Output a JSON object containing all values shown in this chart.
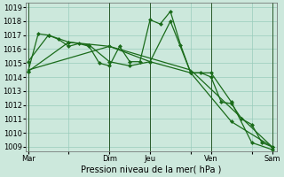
{
  "background_color": "#cce8dc",
  "grid_color": "#99ccbb",
  "line_color": "#1a6b1a",
  "xlabel": "Pression niveau de la mer( hPa )",
  "ylim": [
    1009,
    1019
  ],
  "yticks": [
    1009,
    1010,
    1011,
    1012,
    1013,
    1014,
    1015,
    1016,
    1017,
    1018,
    1019
  ],
  "day_labels": [
    "Mar",
    "",
    "Dim",
    "Jeu",
    "",
    "Ven",
    "",
    "Sam"
  ],
  "day_positions": [
    0,
    8,
    16,
    24,
    32,
    36,
    44,
    48
  ],
  "vline_positions": [
    0,
    16,
    24,
    36,
    48
  ],
  "series1_x": [
    0,
    2,
    4,
    6,
    8,
    10,
    12,
    14,
    16,
    18,
    20,
    22,
    24,
    26,
    28,
    30,
    32,
    34,
    36,
    38,
    40,
    42,
    44,
    46,
    48
  ],
  "series1_y": [
    1014.4,
    1017.1,
    1017.0,
    1016.7,
    1016.2,
    1016.4,
    1016.2,
    1015.0,
    1014.8,
    1016.2,
    1015.1,
    1015.1,
    1018.1,
    1017.8,
    1018.7,
    1016.3,
    1014.3,
    1014.3,
    1014.0,
    1012.2,
    1012.1,
    1011.0,
    1010.6,
    1009.3,
    1009.0
  ],
  "series2_x": [
    0,
    4,
    8,
    12,
    16,
    20,
    24,
    28,
    32,
    36,
    40,
    44,
    48
  ],
  "series2_y": [
    1015.1,
    1017.0,
    1016.5,
    1016.3,
    1015.1,
    1014.8,
    1015.1,
    1018.0,
    1014.3,
    1014.3,
    1012.2,
    1009.3,
    1008.8
  ],
  "series3_x": [
    0,
    8,
    16,
    24,
    32,
    40,
    48
  ],
  "series3_y": [
    1014.4,
    1016.5,
    1016.2,
    1015.1,
    1014.3,
    1010.8,
    1009.0
  ],
  "series4_x": [
    0,
    16,
    32,
    48
  ],
  "series4_y": [
    1014.5,
    1016.2,
    1014.5,
    1009.0
  ],
  "marker_size": 2.5,
  "line_width": 0.9,
  "xlabel_fontsize": 7,
  "tick_fontsize": 6
}
